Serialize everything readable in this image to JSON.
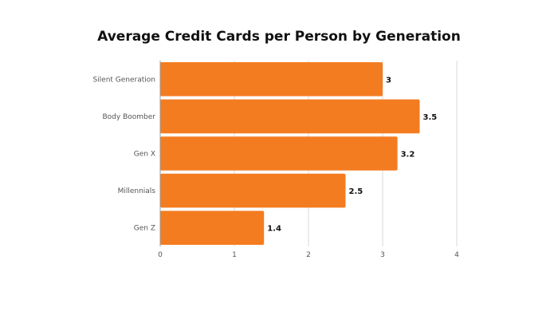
{
  "chart_data": {
    "type": "bar",
    "orientation": "horizontal",
    "title": "Average Credit Cards per Person by Generation",
    "categories": [
      "Silent Generation",
      "Body Boomber",
      "Gen X",
      "Millennials",
      "Gen Z"
    ],
    "values": [
      3,
      3.5,
      3.2,
      2.5,
      1.4
    ],
    "value_labels": [
      "3",
      "3.5",
      "3.2",
      "2.5",
      "1.4"
    ],
    "xlim": [
      0,
      4
    ],
    "x_ticks": [
      "0",
      "1",
      "2",
      "3",
      "4"
    ],
    "xlabel": "",
    "ylabel": "",
    "grid": "vertical",
    "colors": {
      "bar": "#f47c20",
      "grid": "#d9d9d9",
      "axis": "#999999"
    }
  }
}
